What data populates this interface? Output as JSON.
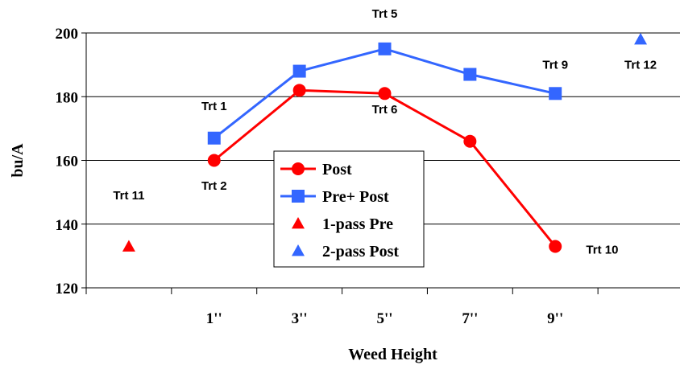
{
  "chart_data": {
    "type": "line",
    "title": "",
    "xlabel": "Weed Height",
    "ylabel": "bu/A",
    "ylim": [
      120,
      200
    ],
    "yticks": [
      120,
      140,
      160,
      180,
      200
    ],
    "categories": [
      "",
      "1''",
      "3''",
      "5''",
      "7''",
      "9''",
      ""
    ],
    "grid": "horizontal",
    "legend_placement": "center",
    "series": [
      {
        "name": "Post",
        "color": "#ff0000",
        "marker": "circle",
        "line": true,
        "points": [
          {
            "x": 1,
            "y": 160
          },
          {
            "x": 2,
            "y": 182
          },
          {
            "x": 3,
            "y": 181
          },
          {
            "x": 4,
            "y": 166
          },
          {
            "x": 5,
            "y": 133
          }
        ]
      },
      {
        "name": "Pre+ Post",
        "color": "#3366ff",
        "marker": "square",
        "line": true,
        "points": [
          {
            "x": 1,
            "y": 167
          },
          {
            "x": 2,
            "y": 188
          },
          {
            "x": 3,
            "y": 195
          },
          {
            "x": 4,
            "y": 187
          },
          {
            "x": 5,
            "y": 181
          }
        ]
      },
      {
        "name": "1-pass Pre",
        "color": "#ff0000",
        "marker": "triangle",
        "line": false,
        "points": [
          {
            "x": 0,
            "y": 133
          }
        ]
      },
      {
        "name": "2-pass Post",
        "color": "#3366ff",
        "marker": "triangle",
        "line": false,
        "points": [
          {
            "x": 6,
            "y": 198
          }
        ]
      }
    ],
    "annotations": [
      {
        "text": "Trt 11",
        "x": 0,
        "y": 149
      },
      {
        "text": "Trt 1",
        "x": 1,
        "y": 177
      },
      {
        "text": "Trt 2",
        "x": 1,
        "y": 152
      },
      {
        "text": "Trt 5",
        "x": 3,
        "y": 206
      },
      {
        "text": "Trt 6",
        "x": 3,
        "y": 176
      },
      {
        "text": "Trt 9",
        "x": 5,
        "y": 190
      },
      {
        "text": "Trt 10",
        "x": 5.55,
        "y": 132
      },
      {
        "text": "Trt 12",
        "x": 6,
        "y": 190
      }
    ]
  }
}
